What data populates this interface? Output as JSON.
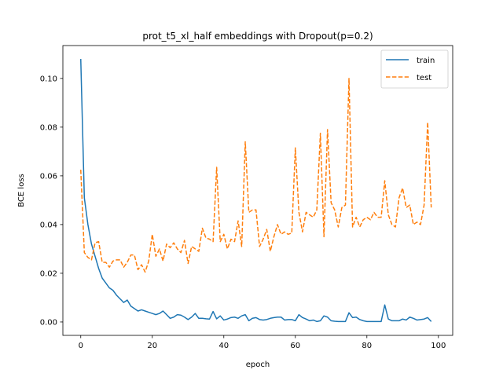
{
  "chart_data": {
    "type": "line",
    "title": "prot_t5_xl_half embeddings with Dropout(p=0.2)",
    "xlabel": "epoch",
    "ylabel": "BCE loss",
    "xlim": [
      -5,
      104
    ],
    "ylim": [
      -0.0055,
      0.1135
    ],
    "xticks": [
      0,
      20,
      40,
      60,
      80,
      100
    ],
    "yticks": [
      0.0,
      0.02,
      0.04,
      0.06,
      0.08,
      0.1
    ],
    "xtick_labels": [
      "0",
      "20",
      "40",
      "60",
      "80",
      "100"
    ],
    "ytick_labels": [
      "0.00",
      "0.02",
      "0.04",
      "0.06",
      "0.08",
      "0.10"
    ],
    "grid": false,
    "legend_position": "top-right",
    "series": [
      {
        "name": "train",
        "color": "#1f77b4",
        "style": "solid",
        "values": [
          0.108,
          0.051,
          0.04,
          0.032,
          0.027,
          0.022,
          0.018,
          0.016,
          0.014,
          0.013,
          0.011,
          0.0095,
          0.008,
          0.009,
          0.0065,
          0.0055,
          0.0045,
          0.005,
          0.0045,
          0.004,
          0.0035,
          0.003,
          0.0035,
          0.0045,
          0.003,
          0.0015,
          0.002,
          0.003,
          0.0028,
          0.002,
          0.001,
          0.002,
          0.0035,
          0.0015,
          0.0015,
          0.0013,
          0.0012,
          0.0043,
          0.0013,
          0.0025,
          0.0008,
          0.0012,
          0.0018,
          0.002,
          0.0015,
          0.0025,
          0.003,
          0.0005,
          0.0015,
          0.0018,
          0.001,
          0.0008,
          0.001,
          0.0015,
          0.0018,
          0.002,
          0.002,
          0.0008,
          0.001,
          0.001,
          0.0005,
          0.003,
          0.0018,
          0.0012,
          0.0005,
          0.0008,
          0.0002,
          0.0005,
          0.0025,
          0.002,
          0.0005,
          0.0003,
          0.0002,
          0.0002,
          0.0002,
          0.0038,
          0.0018,
          0.002,
          0.001,
          0.0005,
          0.0002,
          0.0002,
          0.0002,
          0.0002,
          0.0002,
          0.007,
          0.0012,
          0.0005,
          0.0005,
          0.0005,
          0.0012,
          0.0008,
          0.002,
          0.0015,
          0.0008,
          0.001,
          0.0012,
          0.0018,
          0.0002
        ]
      },
      {
        "name": "test",
        "color": "#ff7f0e",
        "style": "dashed",
        "values": [
          0.0625,
          0.0285,
          0.0265,
          0.0255,
          0.0325,
          0.033,
          0.0245,
          0.0245,
          0.0225,
          0.025,
          0.0255,
          0.0255,
          0.0225,
          0.0245,
          0.0275,
          0.0275,
          0.0215,
          0.0235,
          0.0205,
          0.025,
          0.036,
          0.027,
          0.03,
          0.025,
          0.032,
          0.0305,
          0.0325,
          0.03,
          0.0285,
          0.0335,
          0.024,
          0.031,
          0.03,
          0.029,
          0.0385,
          0.0345,
          0.034,
          0.033,
          0.0635,
          0.033,
          0.036,
          0.03,
          0.034,
          0.033,
          0.0415,
          0.031,
          0.074,
          0.045,
          0.046,
          0.046,
          0.031,
          0.034,
          0.038,
          0.029,
          0.035,
          0.04,
          0.036,
          0.037,
          0.036,
          0.0365,
          0.0715,
          0.045,
          0.037,
          0.045,
          0.044,
          0.043,
          0.046,
          0.0775,
          0.035,
          0.079,
          0.049,
          0.046,
          0.039,
          0.047,
          0.048,
          0.1,
          0.039,
          0.043,
          0.039,
          0.042,
          0.043,
          0.042,
          0.045,
          0.043,
          0.043,
          0.058,
          0.044,
          0.04,
          0.039,
          0.051,
          0.055,
          0.047,
          0.048,
          0.04,
          0.041,
          0.04,
          0.048,
          0.082,
          0.047
        ]
      }
    ]
  }
}
